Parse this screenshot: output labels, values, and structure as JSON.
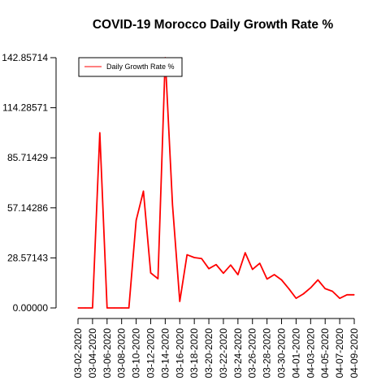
{
  "chart_data": {
    "type": "line",
    "title": "COVID-19 Morocco Daily Growth Rate %",
    "xlabel": "",
    "ylabel": "",
    "x": [
      "03-02-2020",
      "03-03-2020",
      "03-04-2020",
      "03-05-2020",
      "03-06-2020",
      "03-07-2020",
      "03-08-2020",
      "03-09-2020",
      "03-10-2020",
      "03-11-2020",
      "03-12-2020",
      "03-13-2020",
      "03-14-2020",
      "03-15-2020",
      "03-16-2020",
      "03-17-2020",
      "03-18-2020",
      "03-19-2020",
      "03-20-2020",
      "03-21-2020",
      "03-22-2020",
      "03-23-2020",
      "03-24-2020",
      "03-25-2020",
      "03-26-2020",
      "03-27-2020",
      "03-28-2020",
      "03-29-2020",
      "03-30-2020",
      "03-31-2020",
      "04-01-2020",
      "04-02-2020",
      "04-03-2020",
      "04-04-2020",
      "04-05-2020",
      "04-06-2020",
      "04-07-2020",
      "04-08-2020",
      "04-09-2020"
    ],
    "x_tick_labels": [
      "03-02-2020",
      "03-04-2020",
      "03-06-2020",
      "03-08-2020",
      "03-10-2020",
      "03-12-2020",
      "03-14-2020",
      "03-16-2020",
      "03-18-2020",
      "03-20-2020",
      "03-22-2020",
      "03-24-2020",
      "03-26-2020",
      "03-28-2020",
      "03-30-2020",
      "04-01-2020",
      "04-03-2020",
      "04-05-2020",
      "04-07-2020",
      "04-09-2020"
    ],
    "series": [
      {
        "name": "Daily Growth Rate %",
        "color": "#ff0000",
        "values": [
          0,
          0,
          0,
          100,
          0,
          0,
          0,
          0,
          50,
          66.66667,
          20,
          16.66667,
          142.85714,
          58.82353,
          3.7037,
          30.35714,
          28.76712,
          28.19149,
          22.40664,
          24.75,
          19.8,
          24.5,
          19.0,
          31.5,
          22.0,
          25.5,
          16.5,
          19.0,
          16.0,
          11.0,
          5.5,
          8.0,
          11.5,
          16.0,
          11.0,
          9.5,
          5.5,
          7.5,
          7.5
        ]
      }
    ],
    "y_tick_labels": [
      "0.00000",
      "28.57143",
      "57.14286",
      "85.71429",
      "114.28571",
      "142.85714"
    ],
    "ylim": [
      0,
      142.85714
    ],
    "grid": false,
    "legend_position": "top-left",
    "legend_label": "Daily Growth Rate %"
  }
}
